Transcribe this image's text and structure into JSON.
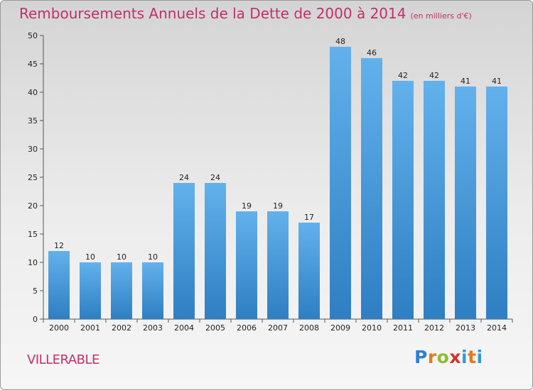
{
  "header": {
    "title": "Remboursements Annuels de la Dette de 2000 à 2014",
    "unit": "(en milliers d'€)"
  },
  "footer": {
    "commune": "VILLERABLE",
    "logo": {
      "letters": [
        "P",
        "r",
        "o",
        "x",
        "i",
        "t",
        "i"
      ],
      "colors": [
        "#2f7fd0",
        "#e77818",
        "#8bbf2a",
        "#d6322b",
        "#2f9ad6",
        "#e77818",
        "#2f9ad6"
      ]
    }
  },
  "colors": {
    "bar_light": "#62b1ec",
    "bar_dark": "#2e7fc2",
    "title": "#c0306b"
  },
  "chart_data": {
    "type": "bar",
    "title": "Remboursements Annuels de la Dette de 2000 à 2014",
    "xlabel": "",
    "ylabel": "",
    "categories": [
      "2000",
      "2001",
      "2002",
      "2003",
      "2004",
      "2005",
      "2006",
      "2007",
      "2008",
      "2009",
      "2010",
      "2011",
      "2012",
      "2013",
      "2014"
    ],
    "values": [
      12,
      10,
      10,
      10,
      24,
      24,
      19,
      19,
      17,
      48,
      46,
      42,
      42,
      41,
      41
    ],
    "ylim": [
      0,
      50
    ],
    "yticks": [
      0,
      5,
      10,
      15,
      20,
      25,
      30,
      35,
      40,
      45,
      50
    ],
    "grid": false,
    "data_labels": true
  }
}
